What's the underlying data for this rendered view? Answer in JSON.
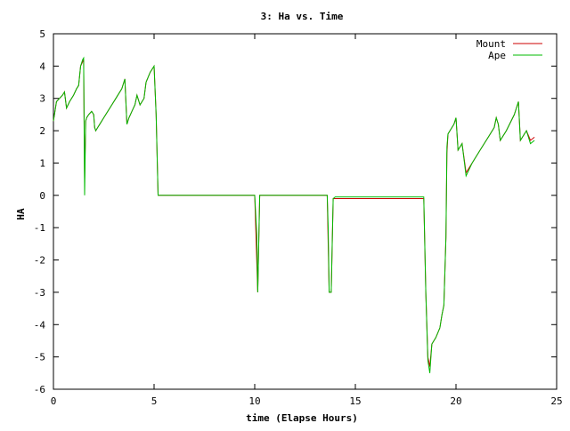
{
  "chart_data": {
    "type": "line",
    "title": "3: Ha vs. Time",
    "xlabel": "time (Elapse Hours)",
    "ylabel": "HA",
    "xlim": [
      0,
      25
    ],
    "ylim": [
      -6,
      5
    ],
    "xticks": [
      0,
      5,
      10,
      15,
      20,
      25
    ],
    "yticks": [
      -6,
      -5,
      -4,
      -3,
      -2,
      -1,
      0,
      1,
      2,
      3,
      4,
      5
    ],
    "grid": false,
    "legend_position": "top-right",
    "series": [
      {
        "name": "Mount",
        "color": "#cc0000",
        "x": [
          0.0,
          0.15,
          0.3,
          0.45,
          0.55,
          0.65,
          0.8,
          1.0,
          1.15,
          1.25,
          1.35,
          1.5,
          1.55,
          1.6,
          1.65,
          1.75,
          1.9,
          2.0,
          2.05,
          2.1,
          2.2,
          2.3,
          2.5,
          2.8,
          3.1,
          3.4,
          3.55,
          3.65,
          3.75,
          3.9,
          4.05,
          4.15,
          4.3,
          4.5,
          4.6,
          4.8,
          5.0,
          5.1,
          5.2,
          10.0,
          10.15,
          10.25,
          10.35,
          13.6,
          13.7,
          13.8,
          13.9,
          14.0,
          18.4,
          18.5,
          18.6,
          18.7,
          18.8,
          19.0,
          19.2,
          19.3,
          19.4,
          19.5,
          19.55,
          19.6,
          19.7,
          19.9,
          20.0,
          20.1,
          20.3,
          20.5,
          20.8,
          21.2,
          21.6,
          21.9,
          22.0,
          22.1,
          22.2,
          22.5,
          22.9,
          23.1,
          23.2,
          23.5,
          23.7,
          23.9
        ],
        "y": [
          2.3,
          2.9,
          3.0,
          3.1,
          3.2,
          2.7,
          2.9,
          3.1,
          3.3,
          3.4,
          4.0,
          4.2,
          0.5,
          2.3,
          2.4,
          2.5,
          2.6,
          2.5,
          2.1,
          2.0,
          2.1,
          2.2,
          2.4,
          2.7,
          3.0,
          3.3,
          3.6,
          2.2,
          2.4,
          2.6,
          2.8,
          3.1,
          2.8,
          3.0,
          3.5,
          3.8,
          4.0,
          2.5,
          0.0,
          0.0,
          -3.0,
          0.0,
          0.0,
          0.0,
          -3.0,
          -3.0,
          -0.1,
          -0.1,
          -0.1,
          -3.0,
          -5.0,
          -5.3,
          -4.6,
          -4.4,
          -4.1,
          -3.7,
          -3.4,
          -1.3,
          1.3,
          1.9,
          2.0,
          2.2,
          2.4,
          1.4,
          1.6,
          0.7,
          1.0,
          1.4,
          1.8,
          2.1,
          2.4,
          2.2,
          1.7,
          2.0,
          2.5,
          2.9,
          1.7,
          2.0,
          1.7,
          1.8
        ]
      },
      {
        "name": "Ape",
        "color": "#00bb00",
        "x": [
          0.0,
          0.15,
          0.3,
          0.45,
          0.55,
          0.65,
          0.8,
          1.0,
          1.15,
          1.25,
          1.35,
          1.45,
          1.5,
          1.55,
          1.6,
          1.65,
          1.75,
          1.9,
          2.0,
          2.05,
          2.1,
          2.2,
          2.3,
          2.5,
          2.8,
          3.1,
          3.4,
          3.55,
          3.65,
          3.75,
          3.9,
          4.05,
          4.15,
          4.3,
          4.5,
          4.6,
          4.8,
          5.0,
          5.1,
          5.2,
          10.0,
          10.1,
          10.15,
          10.25,
          10.35,
          13.6,
          13.65,
          13.7,
          13.8,
          13.85,
          13.9,
          14.0,
          18.4,
          18.5,
          18.6,
          18.7,
          18.8,
          19.0,
          19.2,
          19.3,
          19.4,
          19.5,
          19.55,
          19.6,
          19.7,
          19.9,
          20.0,
          20.1,
          20.3,
          20.5,
          20.8,
          21.2,
          21.6,
          21.9,
          22.0,
          22.1,
          22.2,
          22.5,
          22.9,
          23.1,
          23.2,
          23.5,
          23.7,
          23.9
        ],
        "y": [
          2.3,
          2.9,
          3.0,
          3.1,
          3.2,
          2.7,
          2.9,
          3.1,
          3.3,
          3.4,
          4.0,
          4.2,
          4.25,
          0.0,
          2.3,
          2.4,
          2.5,
          2.6,
          2.5,
          2.1,
          2.0,
          2.1,
          2.2,
          2.4,
          2.7,
          3.0,
          3.3,
          3.6,
          2.2,
          2.4,
          2.6,
          2.8,
          3.1,
          2.8,
          3.0,
          3.5,
          3.8,
          4.0,
          2.5,
          0.0,
          0.0,
          -1.2,
          -3.0,
          0.0,
          0.0,
          0.0,
          -1.0,
          -3.0,
          -3.0,
          -1.5,
          -0.1,
          -0.05,
          -0.05,
          -3.0,
          -5.1,
          -5.5,
          -4.6,
          -4.4,
          -4.1,
          -3.7,
          -3.4,
          -1.3,
          1.5,
          1.9,
          2.0,
          2.2,
          2.4,
          1.4,
          1.6,
          0.6,
          1.0,
          1.4,
          1.8,
          2.1,
          2.4,
          2.2,
          1.7,
          2.0,
          2.5,
          2.9,
          1.7,
          2.0,
          1.6,
          1.7
        ]
      }
    ]
  }
}
